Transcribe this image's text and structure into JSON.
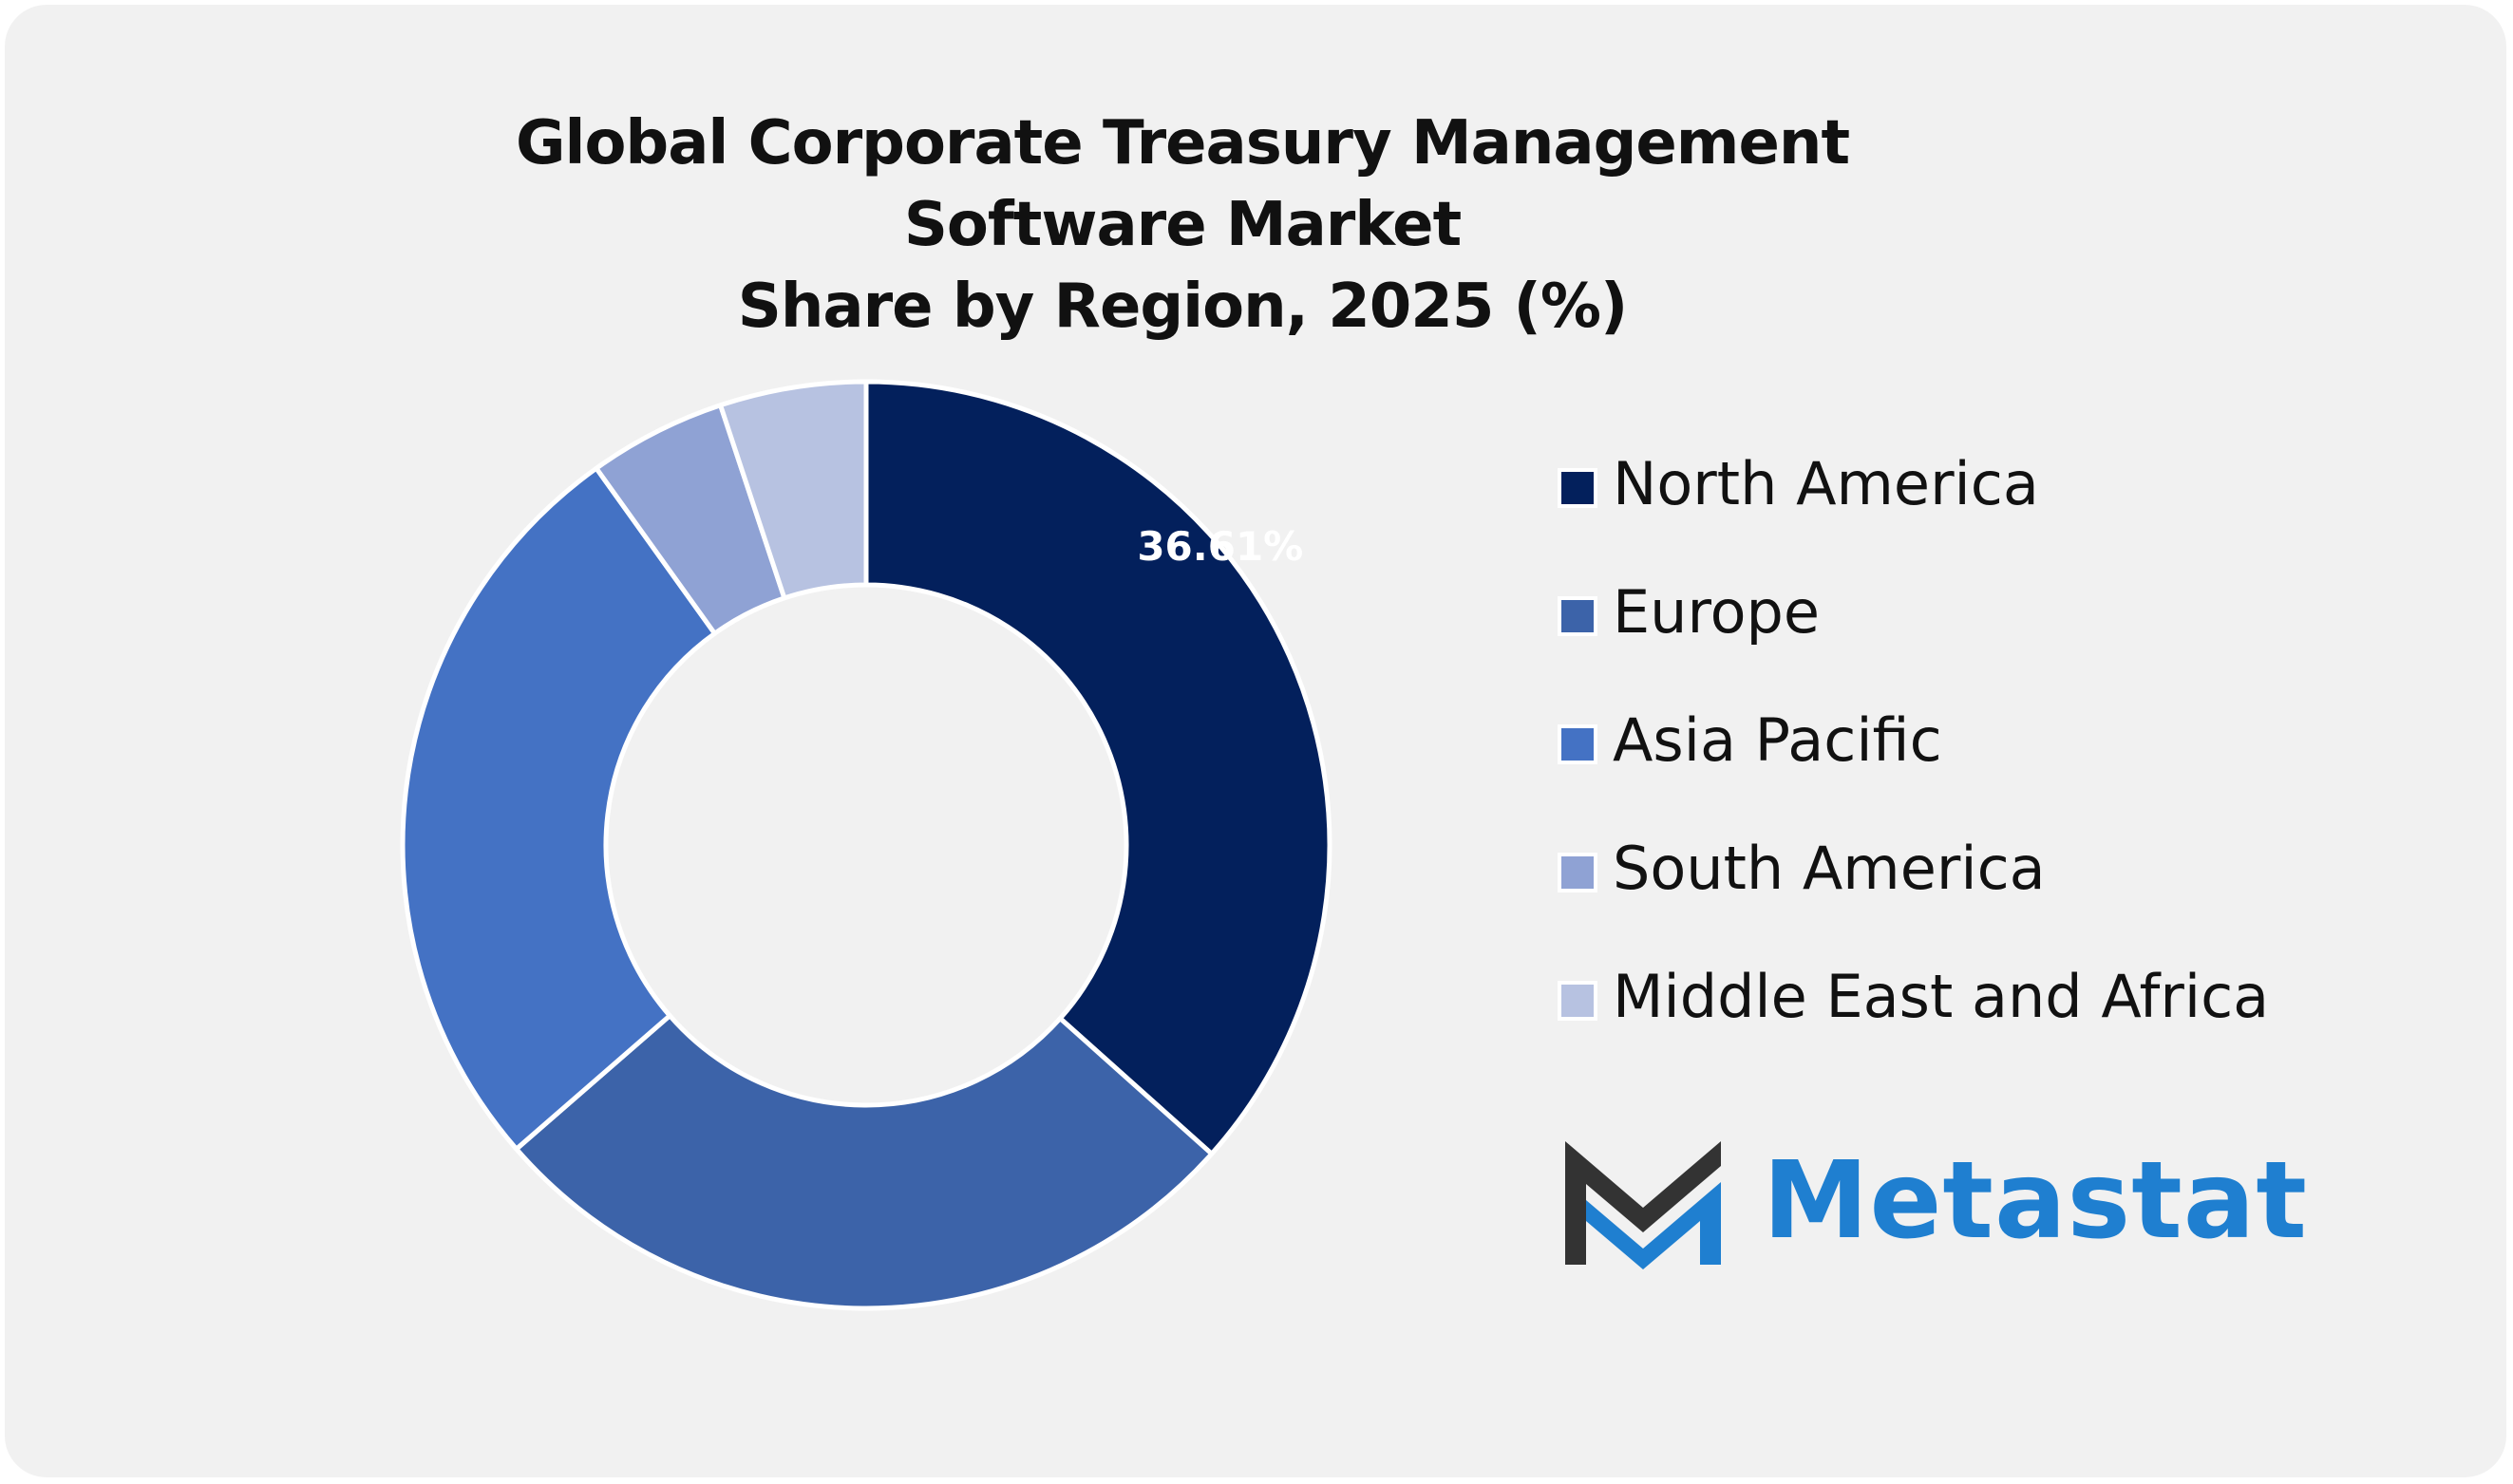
{
  "chart_data": {
    "type": "pie",
    "donut": true,
    "title_lines": [
      "Global Corporate Treasury Management Software Market",
      "Share by Region, 2025 (%)"
    ],
    "categories": [
      "North America",
      "Europe",
      "Asia Pacific",
      "South America",
      "Middle East and Africa"
    ],
    "values": [
      36.61,
      27.0,
      26.5,
      4.8,
      5.09
    ],
    "colors": [
      "#03205c",
      "#3c63a9",
      "#4472c4",
      "#8fa2d4",
      "#b7c2e1"
    ],
    "data_labels": [
      "36.61%",
      "",
      "",
      "",
      ""
    ],
    "legend_position": "right"
  },
  "brand": {
    "name": "Metastat",
    "colors": {
      "dark": "#333333",
      "blue": "#1f7fd0"
    }
  }
}
